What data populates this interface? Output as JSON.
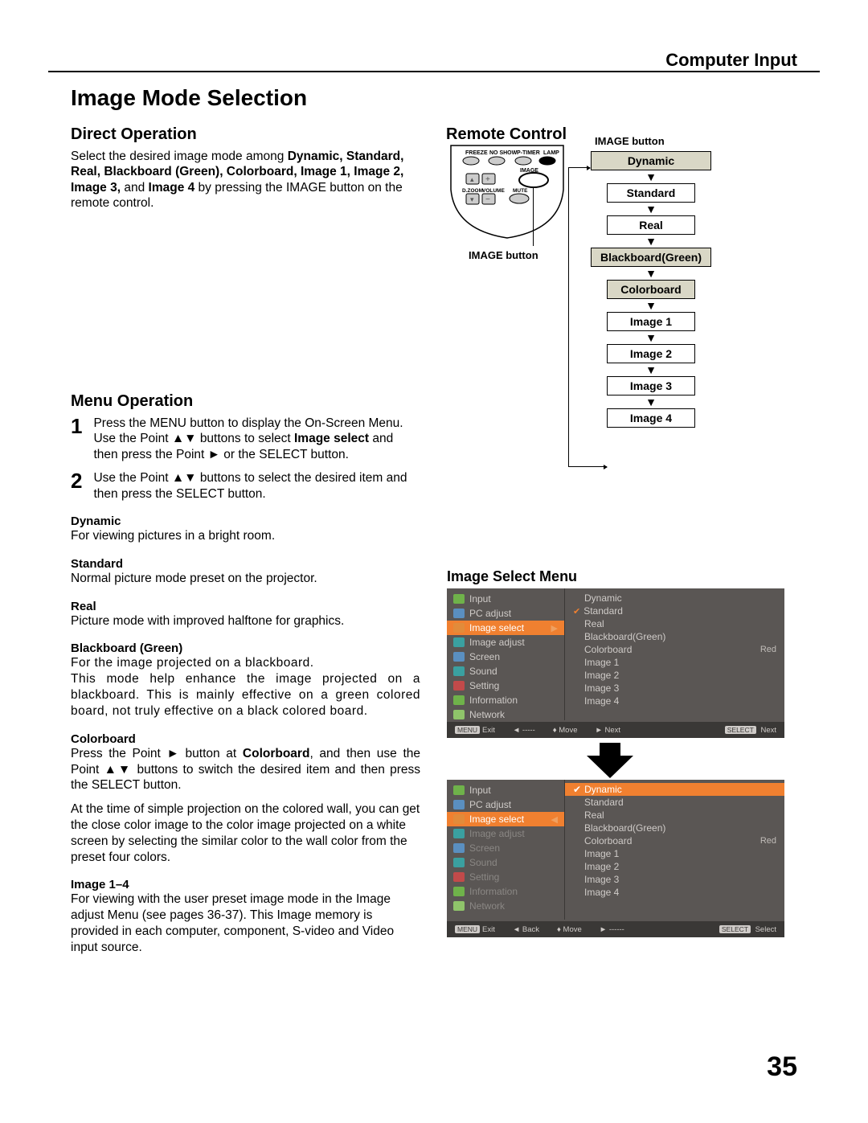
{
  "header": {
    "section": "Computer Input"
  },
  "title": "Image Mode Selection",
  "direct": {
    "heading": "Direct Operation",
    "para_prefix": "Select the desired image mode among ",
    "modes_bold": "Dynamic, Standard, Real, Blackboard (Green), Colorboard, Image 1, Image 2, Image 3,",
    "and_word": " and ",
    "last_mode": "Image 4",
    "para_suffix": " by pressing the IMAGE button on the remote control."
  },
  "remote": {
    "heading": "Remote Control",
    "labels": {
      "freeze": "FREEZE",
      "noshow": "NO SHOW",
      "ptimer": "P-TIMER",
      "lamp": "LAMP",
      "image": "IMAGE",
      "dzoom": "D.ZOOM",
      "volume": "VOLUME",
      "mute": "MUTE"
    },
    "image_button_caption": "IMAGE button"
  },
  "flow": {
    "caption": "IMAGE button",
    "items": [
      {
        "label": "Dynamic",
        "shaded": true,
        "wide": true
      },
      {
        "label": "Standard",
        "shaded": false,
        "wide": false
      },
      {
        "label": "Real",
        "shaded": false,
        "wide": false
      },
      {
        "label": "Blackboard(Green)",
        "shaded": true,
        "wide": true
      },
      {
        "label": "Colorboard",
        "shaded": true,
        "wide": false
      },
      {
        "label": "Image 1",
        "shaded": false,
        "wide": false
      },
      {
        "label": "Image 2",
        "shaded": false,
        "wide": false
      },
      {
        "label": "Image 3",
        "shaded": false,
        "wide": false
      },
      {
        "label": "Image 4",
        "shaded": false,
        "wide": false
      }
    ]
  },
  "menu": {
    "heading": "Menu Operation",
    "steps": [
      {
        "num": "1",
        "text_pre": "Press the MENU button to display the On-Screen Menu. Use the Point ▲▼ buttons to select ",
        "bold": "Image select",
        "text_post": " and then press the Point ► or the SELECT button."
      },
      {
        "num": "2",
        "text_pre": "Use the Point ▲▼ buttons to select  the desired item and then press the SELECT button.",
        "bold": "",
        "text_post": ""
      }
    ],
    "modes": [
      {
        "title": "Dynamic",
        "desc": "For viewing pictures in a bright room."
      },
      {
        "title": "Standard",
        "desc": "Normal picture mode preset on the projector."
      },
      {
        "title": "Real",
        "desc": "Picture mode with improved halftone for graphics."
      },
      {
        "title": "Blackboard (Green)",
        "desc": "For the image projected on a blackboard.\nThis mode help enhance the image projected on a blackboard. This is mainly effective on a green colored board, not truly effective on a black colored board."
      },
      {
        "title": "Colorboard",
        "desc": "Press the Point ► button at Colorboard, and then use the Point ▲▼ buttons to switch the desired item and then press the SELECT button.",
        "extra": "At the time of simple projection on the colored wall, you can get the close color image to the color image projected on a white screen by selecting the similar color to the wall color from the preset four colors."
      },
      {
        "title": "Image 1–4",
        "desc": "For viewing with the user preset image mode in the Image adjust Menu (see pages 36-37). This Image memory is provided in each computer, component, S-video and Video input source."
      }
    ]
  },
  "img_select": {
    "heading": "Image Select Menu",
    "menu_items": [
      "Input",
      "PC adjust",
      "Image select",
      "Image adjust",
      "Screen",
      "Sound",
      "Setting",
      "Information",
      "Network"
    ],
    "options": [
      "Dynamic",
      "Standard",
      "Real",
      "Blackboard(Green)",
      "Colorboard",
      "Image 1",
      "Image 2",
      "Image 3",
      "Image 4"
    ],
    "side_label": "Red",
    "bar": {
      "exit": "Exit",
      "back": "Back",
      "prev": "-----",
      "move": "Move",
      "next": "Next",
      "select": "Select",
      "next2": "------"
    }
  },
  "page_number": "35",
  "colors": {
    "shaded_box": "#d9d7c6",
    "ss_bg": "#5a5654",
    "ss_highlight": "#f08030",
    "ss_bar": "#3a3836",
    "ss_text": "#cfcbc8"
  }
}
